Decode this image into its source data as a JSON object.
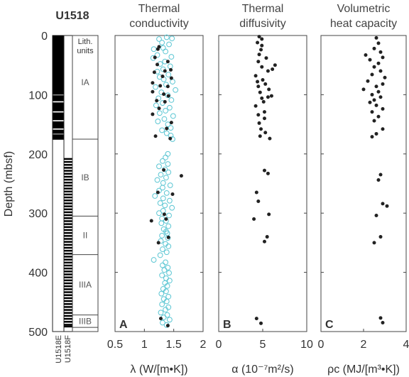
{
  "site": "U1518",
  "y_axis": {
    "label": "Depth (mbsf)",
    "range": [
      0,
      500
    ],
    "ticks": [
      0,
      100,
      200,
      300,
      400,
      500
    ]
  },
  "holes": [
    "U1518E",
    "U1518F"
  ],
  "lith": {
    "header": "Lith.\nunits",
    "units": [
      {
        "name": "IA",
        "top": 0,
        "bottom": 175
      },
      {
        "name": "IB",
        "top": 175,
        "bottom": 305
      },
      {
        "name": "II",
        "top": 305,
        "bottom": 370
      },
      {
        "name": "IIIA",
        "top": 370,
        "bottom": 472
      },
      {
        "name": "IIIB",
        "top": 472,
        "bottom": 493
      }
    ],
    "hole_e_recovery": [
      [
        0,
        100
      ],
      [
        101,
        111
      ],
      [
        113,
        128
      ],
      [
        130,
        143
      ],
      [
        145,
        157
      ],
      [
        159,
        166
      ],
      [
        167,
        176
      ]
    ],
    "hole_f_recovery": [
      [
        207,
        210
      ],
      [
        212,
        215
      ],
      [
        217,
        220
      ],
      [
        222,
        225
      ],
      [
        227,
        230
      ],
      [
        232,
        235
      ],
      [
        237,
        240
      ],
      [
        242,
        245
      ],
      [
        247,
        250
      ],
      [
        252,
        255
      ],
      [
        257,
        260
      ],
      [
        262,
        265
      ],
      [
        267,
        270
      ],
      [
        272,
        275
      ],
      [
        277,
        280
      ],
      [
        282,
        285
      ],
      [
        287,
        290
      ],
      [
        292,
        295
      ],
      [
        297,
        300
      ],
      [
        302,
        305
      ],
      [
        307,
        310
      ],
      [
        312,
        315
      ],
      [
        317,
        320
      ],
      [
        322,
        325
      ],
      [
        327,
        330
      ],
      [
        332,
        335
      ],
      [
        337,
        340
      ],
      [
        342,
        345
      ],
      [
        347,
        350
      ],
      [
        352,
        355
      ],
      [
        357,
        360
      ],
      [
        362,
        365
      ],
      [
        367,
        370
      ],
      [
        372,
        375
      ],
      [
        377,
        380
      ],
      [
        382,
        385
      ],
      [
        387,
        390
      ],
      [
        392,
        395
      ],
      [
        397,
        400
      ],
      [
        402,
        405
      ],
      [
        407,
        410
      ],
      [
        412,
        415
      ],
      [
        417,
        420
      ],
      [
        422,
        425
      ],
      [
        427,
        430
      ],
      [
        432,
        435
      ],
      [
        437,
        440
      ],
      [
        442,
        445
      ],
      [
        447,
        450
      ],
      [
        452,
        455
      ],
      [
        457,
        460
      ],
      [
        462,
        465
      ],
      [
        467,
        470
      ],
      [
        472,
        475
      ],
      [
        477,
        480
      ],
      [
        482,
        485
      ],
      [
        487,
        490
      ],
      [
        490,
        493
      ]
    ]
  },
  "chart_data": [
    {
      "type": "scatter",
      "panel_letter": "A",
      "title": "Thermal\nconductivity",
      "xlabel": "λ (W/[m•K])",
      "xlim": [
        0.5,
        2
      ],
      "xticks": [
        "0.5",
        "1",
        "1.5",
        "2"
      ],
      "series": [
        {
          "marker": "open-circle",
          "color": "#5bc6d3",
          "points": [
            [
              1.38,
              3
            ],
            [
              1.25,
              6
            ],
            [
              1.47,
              5
            ],
            [
              1.3,
              12
            ],
            [
              1.42,
              15
            ],
            [
              1.32,
              21
            ],
            [
              1.16,
              23
            ],
            [
              1.36,
              27
            ],
            [
              1.22,
              33
            ],
            [
              1.46,
              36
            ],
            [
              1.15,
              38
            ],
            [
              1.35,
              44
            ],
            [
              1.27,
              48
            ],
            [
              1.44,
              52
            ],
            [
              1.32,
              57
            ],
            [
              1.22,
              61
            ],
            [
              1.41,
              66
            ],
            [
              1.26,
              70
            ],
            [
              1.33,
              74
            ],
            [
              1.48,
              78
            ],
            [
              1.37,
              83
            ],
            [
              1.19,
              87
            ],
            [
              1.53,
              92
            ],
            [
              1.29,
              96
            ],
            [
              1.4,
              101
            ],
            [
              1.24,
              106
            ],
            [
              1.46,
              109
            ],
            [
              1.31,
              114
            ],
            [
              1.2,
              118
            ],
            [
              1.43,
              122
            ],
            [
              1.36,
              127
            ],
            [
              1.26,
              131
            ],
            [
              1.49,
              136
            ],
            [
              1.34,
              141
            ],
            [
              1.23,
              145
            ],
            [
              1.4,
              150
            ],
            [
              1.45,
              156
            ],
            [
              1.3,
              160
            ],
            [
              1.38,
              165
            ],
            [
              1.45,
              169
            ],
            [
              1.48,
              175
            ],
            [
              1.4,
              200
            ],
            [
              1.36,
              206
            ],
            [
              1.31,
              212
            ],
            [
              1.4,
              217
            ],
            [
              1.25,
              221
            ],
            [
              1.35,
              226
            ],
            [
              1.41,
              231
            ],
            [
              1.28,
              235
            ],
            [
              1.37,
              240
            ],
            [
              1.22,
              244
            ],
            [
              1.32,
              249
            ],
            [
              1.44,
              253
            ],
            [
              1.31,
              257
            ],
            [
              1.25,
              262
            ],
            [
              1.38,
              266
            ],
            [
              1.18,
              271
            ],
            [
              1.32,
              275
            ],
            [
              1.43,
              279
            ],
            [
              1.27,
              283
            ],
            [
              1.35,
              287
            ],
            [
              1.47,
              291
            ],
            [
              1.32,
              296
            ],
            [
              1.25,
              300
            ],
            [
              1.42,
              304
            ],
            [
              1.3,
              309
            ],
            [
              1.37,
              313
            ],
            [
              1.29,
              317
            ],
            [
              1.41,
              322
            ],
            [
              1.33,
              327
            ],
            [
              1.37,
              331
            ],
            [
              1.39,
              334
            ],
            [
              1.3,
              338
            ],
            [
              1.4,
              342
            ],
            [
              1.28,
              347
            ],
            [
              1.36,
              352
            ],
            [
              1.41,
              356
            ],
            [
              1.31,
              361
            ],
            [
              1.38,
              366
            ],
            [
              1.27,
              371
            ],
            [
              1.16,
              379
            ],
            [
              1.36,
              383
            ],
            [
              1.31,
              388
            ],
            [
              1.4,
              392
            ],
            [
              1.34,
              396
            ],
            [
              1.42,
              401
            ],
            [
              1.3,
              405
            ],
            [
              1.37,
              410
            ],
            [
              1.43,
              414
            ],
            [
              1.35,
              418
            ],
            [
              1.39,
              423
            ],
            [
              1.32,
              428
            ],
            [
              1.37,
              432
            ],
            [
              1.29,
              436
            ],
            [
              1.41,
              441
            ],
            [
              1.33,
              445
            ],
            [
              1.38,
              449
            ],
            [
              1.3,
              454
            ],
            [
              1.41,
              459
            ],
            [
              1.36,
              463
            ],
            [
              1.28,
              468
            ],
            [
              1.39,
              472
            ],
            [
              1.33,
              476
            ],
            [
              1.43,
              480
            ],
            [
              1.31,
              485
            ],
            [
              1.38,
              489
            ]
          ]
        },
        {
          "marker": "filled-dot",
          "color": "#222222",
          "points": [
            [
              1.25,
              19
            ],
            [
              1.23,
              23
            ],
            [
              1.18,
              37
            ],
            [
              1.4,
              44
            ],
            [
              1.22,
              49
            ],
            [
              1.45,
              58
            ],
            [
              1.35,
              60
            ],
            [
              1.17,
              62
            ],
            [
              1.31,
              69
            ],
            [
              1.46,
              72
            ],
            [
              1.14,
              80
            ],
            [
              1.27,
              85
            ],
            [
              1.4,
              86
            ],
            [
              1.14,
              95
            ],
            [
              1.33,
              99
            ],
            [
              1.41,
              102
            ],
            [
              1.21,
              110
            ],
            [
              1.35,
              112
            ],
            [
              1.25,
              123
            ],
            [
              1.14,
              133
            ],
            [
              1.46,
              147
            ],
            [
              1.38,
              157
            ],
            [
              1.19,
              170
            ],
            [
              1.44,
              174
            ],
            [
              1.33,
              227
            ],
            [
              1.63,
              237
            ],
            [
              1.23,
              265
            ],
            [
              1.48,
              268
            ],
            [
              1.34,
              302
            ],
            [
              1.37,
              310
            ],
            [
              1.12,
              313
            ],
            [
              1.41,
              341
            ],
            [
              1.24,
              350
            ],
            [
              1.28,
              478
            ],
            [
              1.4,
              490
            ]
          ]
        }
      ]
    },
    {
      "type": "scatter",
      "panel_letter": "B",
      "title": "Thermal\ndiffusivity",
      "xlabel": "α (10⁻⁷m²/s)",
      "xlim": [
        0,
        10
      ],
      "xticks": [
        "0",
        "5",
        "10"
      ],
      "series": [
        {
          "marker": "filled-dot",
          "color": "#222222",
          "points": [
            [
              4.6,
              2
            ],
            [
              4.9,
              6
            ],
            [
              4.4,
              12
            ],
            [
              4.9,
              17
            ],
            [
              4.8,
              24
            ],
            [
              4.6,
              32
            ],
            [
              5.4,
              38
            ],
            [
              4.5,
              44
            ],
            [
              6.4,
              50
            ],
            [
              4.9,
              53
            ],
            [
              6.1,
              57
            ],
            [
              5.6,
              60
            ],
            [
              4.2,
              68
            ],
            [
              5.0,
              75
            ],
            [
              4.4,
              78
            ],
            [
              5.3,
              82
            ],
            [
              4.5,
              86
            ],
            [
              5.7,
              91
            ],
            [
              4.7,
              96
            ],
            [
              6.0,
              102
            ],
            [
              5.6,
              104
            ],
            [
              4.9,
              106
            ],
            [
              5.1,
              112
            ],
            [
              4.2,
              119
            ],
            [
              5.2,
              129
            ],
            [
              4.5,
              134
            ],
            [
              5.2,
              140
            ],
            [
              4.6,
              148
            ],
            [
              4.8,
              158
            ],
            [
              5.3,
              164
            ],
            [
              4.7,
              170
            ],
            [
              5.8,
              174
            ],
            [
              5.2,
              228
            ],
            [
              5.6,
              233
            ],
            [
              4.3,
              265
            ],
            [
              4.5,
              280
            ],
            [
              5.7,
              302
            ],
            [
              4.0,
              310
            ],
            [
              5.5,
              340
            ],
            [
              5.2,
              348
            ],
            [
              4.3,
              478
            ],
            [
              4.8,
              486
            ]
          ]
        }
      ]
    },
    {
      "type": "scatter",
      "panel_letter": "C",
      "title": "Volumetric\nheat capacity",
      "xlabel": "ρc (MJ/[m³•K])",
      "xlim": [
        0,
        4
      ],
      "xticks": [
        "0",
        "2",
        "4"
      ],
      "series": [
        {
          "marker": "filled-dot",
          "color": "#222222",
          "points": [
            [
              2.6,
              4
            ],
            [
              2.7,
              13
            ],
            [
              2.5,
              22
            ],
            [
              2.8,
              28
            ],
            [
              2.1,
              33
            ],
            [
              2.9,
              37
            ],
            [
              2.3,
              41
            ],
            [
              2.7,
              47
            ],
            [
              2.5,
              53
            ],
            [
              2.8,
              60
            ],
            [
              2.4,
              66
            ],
            [
              3.0,
              71
            ],
            [
              2.2,
              77
            ],
            [
              2.9,
              82
            ],
            [
              2.6,
              86
            ],
            [
              2.0,
              91
            ],
            [
              2.7,
              95
            ],
            [
              2.4,
              100
            ],
            [
              2.8,
              104
            ],
            [
              2.5,
              109
            ],
            [
              2.3,
              113
            ],
            [
              2.6,
              118
            ],
            [
              2.9,
              124
            ],
            [
              2.4,
              129
            ],
            [
              2.7,
              137
            ],
            [
              2.5,
              144
            ],
            [
              2.9,
              158
            ],
            [
              2.6,
              166
            ],
            [
              2.4,
              171
            ],
            [
              2.8,
              235
            ],
            [
              2.7,
              244
            ],
            [
              2.9,
              284
            ],
            [
              3.1,
              288
            ],
            [
              2.6,
              304
            ],
            [
              2.8,
              340
            ],
            [
              2.5,
              350
            ],
            [
              2.8,
              477
            ],
            [
              2.9,
              485
            ]
          ]
        }
      ]
    }
  ]
}
